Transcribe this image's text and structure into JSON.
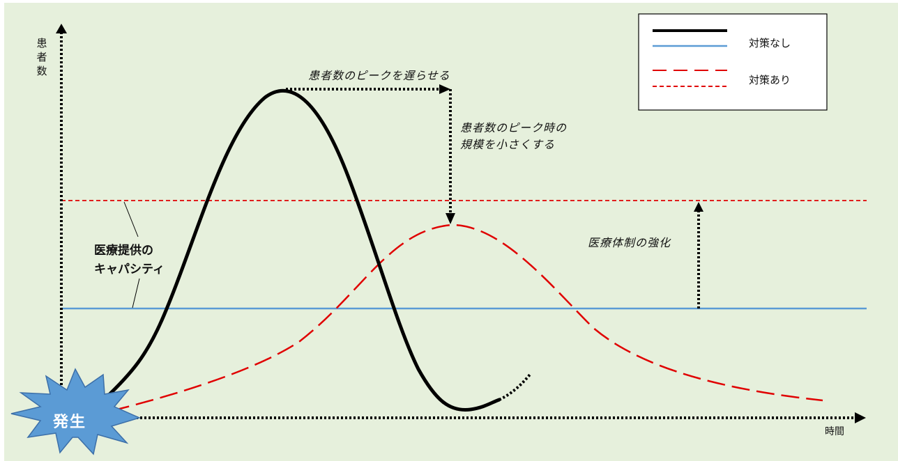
{
  "axes": {
    "y_label": "患者数",
    "x_label": "時間"
  },
  "annotations": {
    "delay_peak": "患者数のピークを遅らせる",
    "reduce_peak_line1": "患者数のピーク時の",
    "reduce_peak_line2": "規模を小さくする",
    "strengthen": "医療体制の強化",
    "capacity_line1": "医療提供の",
    "capacity_line2": "キャパシティ"
  },
  "legend": {
    "items": [
      {
        "label": "対策なし",
        "color": "#000000"
      },
      {
        "label": "対策あり",
        "color": "#e00000"
      }
    ]
  },
  "burst": {
    "label": "発生",
    "color": "#5b9bd5"
  },
  "colors": {
    "background": "#e6f0dc",
    "no_measures_curve": "#000000",
    "with_measures_curve": "#e00000",
    "capacity_line": "#5b9bd5",
    "capacity_line_raised": "#e00000"
  }
}
